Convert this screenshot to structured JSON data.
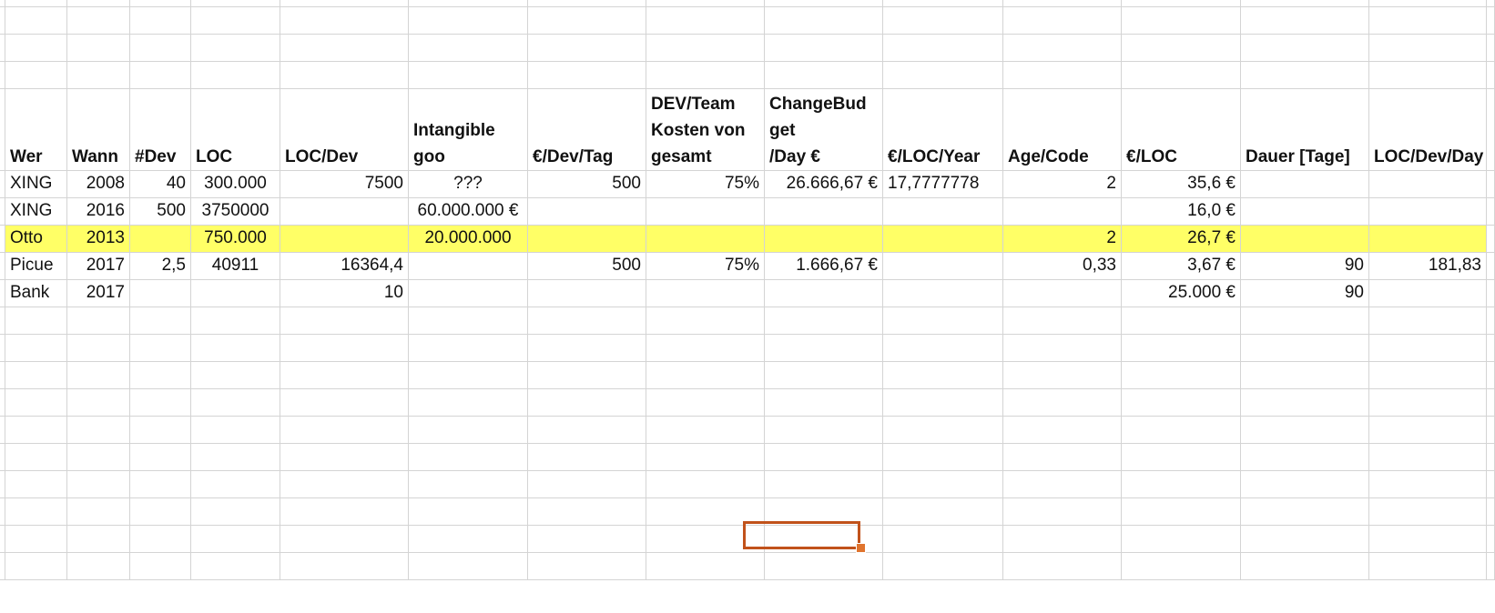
{
  "headers": [
    "Wer",
    "Wann",
    "#Dev",
    "LOC",
    "LOC/Dev",
    "Intangible goo",
    "€/Dev/Tag",
    "DEV/Team\nKosten von\ngesamt",
    "ChangeBud\nget\n/Day €",
    "€/LOC/Year",
    "Age/Code",
    "€/LOC",
    "Dauer [Tage]",
    "LOC/Dev/Day"
  ],
  "rows": [
    [
      "XING",
      "2008",
      "40",
      "300.000",
      "7500",
      "???",
      "500",
      "75%",
      "26.666,67 €",
      "17,7777778",
      "2",
      "35,6 €",
      "",
      ""
    ],
    [
      "XING",
      "2016",
      "500",
      "3750000",
      "",
      "60.000.000 €",
      "",
      "",
      "",
      "",
      "",
      "16,0 €",
      "",
      ""
    ],
    [
      "Otto",
      "2013",
      "",
      "750.000",
      "",
      "20.000.000",
      "",
      "",
      "",
      "",
      "2",
      "26,7 €",
      "",
      ""
    ],
    [
      "Picue",
      "2017",
      "2,5",
      "40911",
      "16364,4",
      "",
      "500",
      "75%",
      "1.666,67 €",
      "",
      "0,33",
      "3,67 €",
      "90",
      "181,83"
    ],
    [
      "Bank",
      "2017",
      "",
      "",
      "10",
      "",
      "",
      "",
      "",
      "",
      "",
      "25.000 €",
      "90",
      ""
    ]
  ],
  "align": [
    "l",
    "r",
    "r",
    "c",
    "r",
    "c",
    "r",
    "r",
    "r",
    "l",
    "r",
    "r",
    "r",
    "r"
  ],
  "highlight_row": 2,
  "colors": {
    "highlight": "#ffff66",
    "selection": "#c1521b",
    "grid": "#d4d4d4"
  }
}
